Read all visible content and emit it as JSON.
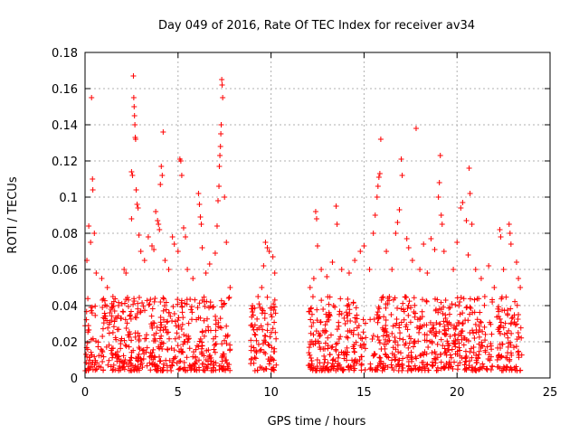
{
  "chart_data": {
    "type": "scatter",
    "title": "Day 049 of 2016, Rate Of TEC Index for receiver av34",
    "xlabel": "GPS time / hours",
    "ylabel": "ROTI / TECUs",
    "xlim": [
      0,
      25
    ],
    "ylim": [
      0,
      0.18
    ],
    "x_ticks": [
      "0",
      "5",
      "10",
      "15",
      "20",
      "25"
    ],
    "y_ticks": [
      "0",
      "0.02",
      "0.04",
      "0.06",
      "0.08",
      "0.1",
      "0.12",
      "0.14",
      "0.16",
      "0.18"
    ],
    "grid": true,
    "marker": "+",
    "marker_color": "#ff0000",
    "series": [
      {
        "points": [
          [
            0.35,
            0.155
          ],
          [
            0.4,
            0.11
          ],
          [
            0.42,
            0.104
          ],
          [
            0.2,
            0.084
          ],
          [
            0.5,
            0.08
          ],
          [
            0.3,
            0.075
          ],
          [
            0.1,
            0.065
          ],
          [
            0.6,
            0.058
          ],
          [
            0.9,
            0.055
          ],
          [
            1.2,
            0.05
          ],
          [
            1.5,
            0.045
          ],
          [
            1.8,
            0.04
          ],
          [
            2.1,
            0.06
          ],
          [
            2.2,
            0.058
          ],
          [
            2.5,
            0.114
          ],
          [
            2.55,
            0.112
          ],
          [
            2.6,
            0.167
          ],
          [
            2.62,
            0.155
          ],
          [
            2.64,
            0.15
          ],
          [
            2.66,
            0.145
          ],
          [
            2.68,
            0.14
          ],
          [
            2.7,
            0.133
          ],
          [
            2.72,
            0.132
          ],
          [
            2.75,
            0.104
          ],
          [
            2.8,
            0.096
          ],
          [
            2.85,
            0.094
          ],
          [
            2.5,
            0.088
          ],
          [
            2.9,
            0.079
          ],
          [
            3.0,
            0.07
          ],
          [
            3.2,
            0.065
          ],
          [
            3.4,
            0.078
          ],
          [
            3.6,
            0.073
          ],
          [
            3.7,
            0.071
          ],
          [
            3.8,
            0.092
          ],
          [
            3.9,
            0.087
          ],
          [
            3.95,
            0.085
          ],
          [
            4.0,
            0.082
          ],
          [
            4.05,
            0.107
          ],
          [
            4.1,
            0.117
          ],
          [
            4.15,
            0.112
          ],
          [
            4.2,
            0.136
          ],
          [
            4.3,
            0.065
          ],
          [
            4.5,
            0.06
          ],
          [
            4.7,
            0.078
          ],
          [
            4.8,
            0.074
          ],
          [
            5.0,
            0.07
          ],
          [
            5.1,
            0.121
          ],
          [
            5.15,
            0.12
          ],
          [
            5.2,
            0.112
          ],
          [
            5.3,
            0.083
          ],
          [
            5.4,
            0.078
          ],
          [
            5.5,
            0.06
          ],
          [
            5.8,
            0.055
          ],
          [
            6.1,
            0.102
          ],
          [
            6.15,
            0.096
          ],
          [
            6.2,
            0.089
          ],
          [
            6.25,
            0.085
          ],
          [
            6.3,
            0.072
          ],
          [
            6.5,
            0.058
          ],
          [
            6.7,
            0.063
          ],
          [
            7.0,
            0.069
          ],
          [
            7.1,
            0.084
          ],
          [
            7.15,
            0.098
          ],
          [
            7.2,
            0.106
          ],
          [
            7.22,
            0.117
          ],
          [
            7.25,
            0.123
          ],
          [
            7.28,
            0.128
          ],
          [
            7.3,
            0.135
          ],
          [
            7.32,
            0.14
          ],
          [
            7.35,
            0.165
          ],
          [
            7.37,
            0.162
          ],
          [
            7.4,
            0.155
          ],
          [
            7.5,
            0.1
          ],
          [
            7.6,
            0.075
          ],
          [
            7.8,
            0.05
          ],
          [
            9.0,
            0.04
          ],
          [
            9.3,
            0.045
          ],
          [
            9.5,
            0.05
          ],
          [
            9.6,
            0.062
          ],
          [
            9.7,
            0.075
          ],
          [
            9.8,
            0.072
          ],
          [
            9.9,
            0.07
          ],
          [
            10.1,
            0.067
          ],
          [
            10.2,
            0.058
          ],
          [
            12.1,
            0.05
          ],
          [
            12.3,
            0.055
          ],
          [
            12.4,
            0.092
          ],
          [
            12.45,
            0.088
          ],
          [
            12.5,
            0.073
          ],
          [
            12.7,
            0.06
          ],
          [
            13.0,
            0.056
          ],
          [
            13.3,
            0.064
          ],
          [
            13.5,
            0.095
          ],
          [
            13.55,
            0.085
          ],
          [
            13.8,
            0.06
          ],
          [
            14.2,
            0.058
          ],
          [
            14.5,
            0.065
          ],
          [
            14.8,
            0.07
          ],
          [
            15.0,
            0.073
          ],
          [
            15.3,
            0.06
          ],
          [
            15.5,
            0.08
          ],
          [
            15.6,
            0.09
          ],
          [
            15.7,
            0.1
          ],
          [
            15.75,
            0.106
          ],
          [
            15.8,
            0.111
          ],
          [
            15.85,
            0.113
          ],
          [
            15.9,
            0.132
          ],
          [
            16.2,
            0.07
          ],
          [
            16.5,
            0.06
          ],
          [
            16.7,
            0.08
          ],
          [
            16.8,
            0.086
          ],
          [
            16.9,
            0.093
          ],
          [
            17.0,
            0.121
          ],
          [
            17.05,
            0.112
          ],
          [
            17.3,
            0.077
          ],
          [
            17.4,
            0.072
          ],
          [
            17.6,
            0.065
          ],
          [
            17.8,
            0.138
          ],
          [
            18.0,
            0.06
          ],
          [
            18.2,
            0.074
          ],
          [
            18.4,
            0.058
          ],
          [
            18.6,
            0.077
          ],
          [
            18.8,
            0.071
          ],
          [
            19.0,
            0.1
          ],
          [
            19.05,
            0.108
          ],
          [
            19.1,
            0.123
          ],
          [
            19.15,
            0.09
          ],
          [
            19.2,
            0.085
          ],
          [
            19.3,
            0.07
          ],
          [
            19.8,
            0.06
          ],
          [
            20.0,
            0.075
          ],
          [
            20.2,
            0.094
          ],
          [
            20.3,
            0.097
          ],
          [
            20.5,
            0.087
          ],
          [
            20.6,
            0.068
          ],
          [
            20.65,
            0.116
          ],
          [
            20.7,
            0.102
          ],
          [
            20.8,
            0.085
          ],
          [
            21.0,
            0.06
          ],
          [
            21.3,
            0.055
          ],
          [
            21.7,
            0.062
          ],
          [
            22.0,
            0.05
          ],
          [
            22.3,
            0.082
          ],
          [
            22.35,
            0.078
          ],
          [
            22.5,
            0.06
          ],
          [
            22.8,
            0.085
          ],
          [
            22.85,
            0.08
          ],
          [
            22.9,
            0.074
          ],
          [
            23.2,
            0.064
          ],
          [
            23.3,
            0.055
          ],
          [
            23.4,
            0.05
          ]
        ],
        "dense_bands_hours": [
          [
            0,
            7.8
          ],
          [
            8.9,
            10.3
          ],
          [
            12.0,
            15.1
          ],
          [
            15.3,
            21.9
          ],
          [
            22.1,
            23.5
          ]
        ],
        "dense_band_range": [
          0.004,
          0.045
        ]
      }
    ]
  }
}
